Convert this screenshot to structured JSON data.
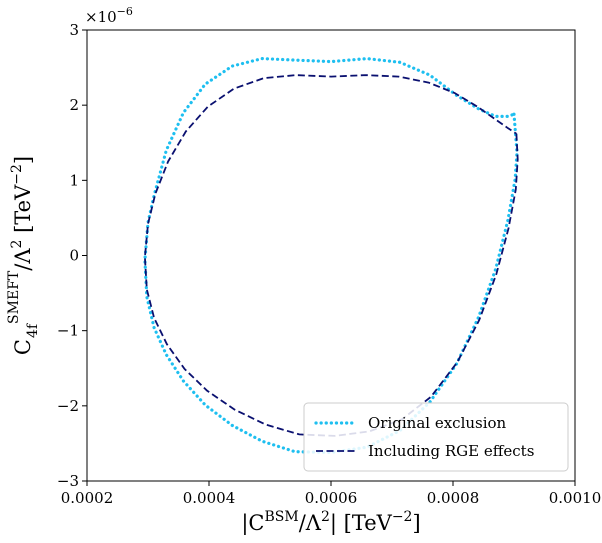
{
  "chart_data": {
    "type": "line",
    "xlabel_parts": {
      "pre": "|C",
      "sup": "BSM",
      "mid": "/Λ",
      "sup2": "2",
      "post": "| [TeV",
      "sup3": "−2",
      "end": "]"
    },
    "ylabel_parts": {
      "pre": "C",
      "sub": "4f",
      "sup": "SMEFT",
      "mid": "/Λ",
      "sup2": "2",
      "post": " [TeV",
      "sup3": "−2",
      "end": "]"
    },
    "xlim": [
      0.0002,
      0.001
    ],
    "ylim": [
      -3,
      3
    ],
    "y_multiplier": {
      "base": "×10",
      "exp": "−6"
    },
    "x_ticks": [
      {
        "value": 0.0002,
        "label": "0.0002"
      },
      {
        "value": 0.0004,
        "label": "0.0004"
      },
      {
        "value": 0.0006,
        "label": "0.0006"
      },
      {
        "value": 0.0008,
        "label": "0.0008"
      },
      {
        "value": 0.001,
        "label": "0.0010"
      }
    ],
    "y_ticks": [
      {
        "value": -3,
        "label": "−3"
      },
      {
        "value": -2,
        "label": "−2"
      },
      {
        "value": -1,
        "label": "−1"
      },
      {
        "value": 0,
        "label": "0"
      },
      {
        "value": 1,
        "label": "1"
      },
      {
        "value": 2,
        "label": "2"
      },
      {
        "value": 3,
        "label": "3"
      }
    ],
    "grid": false,
    "legend_position": "lower-right",
    "series": [
      {
        "name": "Original exclusion",
        "color": "#1ebff0",
        "style": "dotted",
        "x": [
          0.0009,
          0.000905,
          0.000902,
          0.00089,
          0.00087,
          0.000842,
          0.000806,
          0.000762,
          0.000713,
          0.000659,
          0.0006,
          0.000541,
          0.000487,
          0.000438,
          0.000394,
          0.000358,
          0.00033,
          0.00031,
          0.000298,
          0.000295,
          0.0003,
          0.00031,
          0.00033,
          0.000358,
          0.000394,
          0.000438,
          0.000487,
          0.000541,
          0.0006,
          0.000659,
          0.000713,
          0.000762,
          0.000806,
          0.000842,
          0.00087,
          0.00089,
          0.0009
        ],
        "y": [
          1.88,
          1.37,
          1.02,
          0.47,
          -0.18,
          -0.82,
          -1.44,
          -1.95,
          -2.33,
          -2.55,
          -2.62,
          -2.61,
          -2.47,
          -2.26,
          -1.99,
          -1.67,
          -1.32,
          -0.96,
          -0.55,
          -0.06,
          0.44,
          0.8,
          1.4,
          1.9,
          2.28,
          2.52,
          2.62,
          2.6,
          2.58,
          2.62,
          2.57,
          2.4,
          2.13,
          1.95,
          1.85,
          1.85,
          1.88
        ]
      },
      {
        "name": "Including RGE effects",
        "color": "#0a1070",
        "style": "dashed",
        "x": [
          0.000904,
          0.000906,
          0.000903,
          0.000891,
          0.000871,
          0.000843,
          0.000807,
          0.000764,
          0.000716,
          0.000663,
          0.000606,
          0.000548,
          0.000493,
          0.000442,
          0.000397,
          0.00036,
          0.000331,
          0.00031,
          0.000298,
          0.000295,
          0.0003,
          0.000312,
          0.000333,
          0.000362,
          0.000398,
          0.000441,
          0.00049,
          0.000543,
          0.0006,
          0.000657,
          0.000711,
          0.00076,
          0.000803,
          0.00084,
          0.000868,
          0.000889,
          0.000904
        ],
        "y": [
          1.62,
          1.28,
          0.88,
          0.36,
          -0.25,
          -0.86,
          -1.42,
          -1.88,
          -2.18,
          -2.34,
          -2.4,
          -2.38,
          -2.25,
          -2.05,
          -1.8,
          -1.51,
          -1.18,
          -0.83,
          -0.45,
          -0.02,
          0.42,
          0.82,
          1.25,
          1.65,
          1.98,
          2.22,
          2.36,
          2.4,
          2.38,
          2.4,
          2.38,
          2.3,
          2.16,
          1.98,
          1.82,
          1.7,
          1.62
        ]
      }
    ]
  }
}
